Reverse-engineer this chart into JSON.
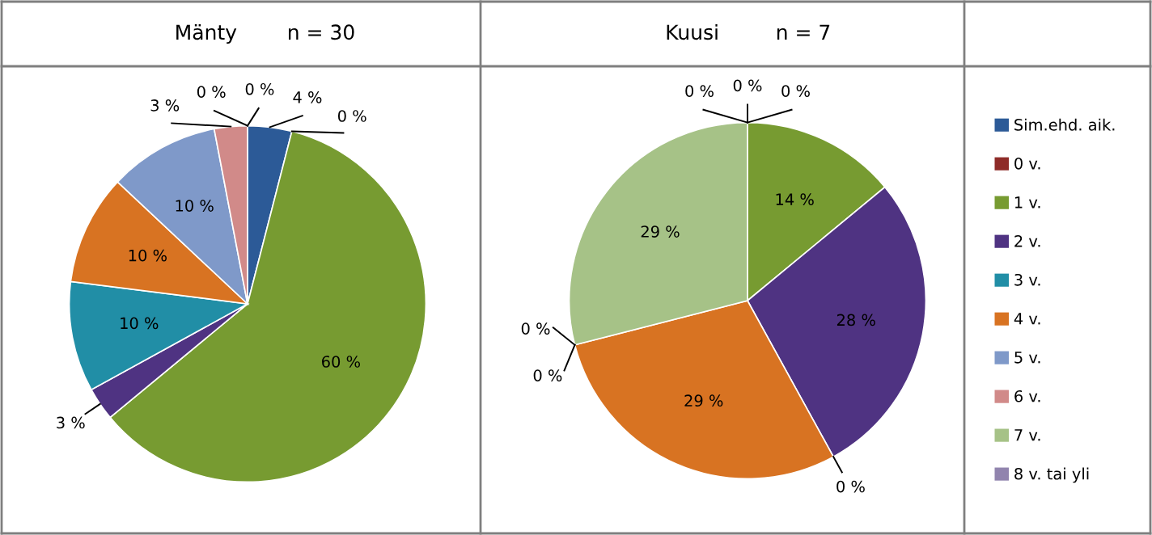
{
  "chart_data": [
    {
      "type": "pie",
      "title": "Mänty",
      "subtitle": "n = 30",
      "categories": [
        "Sim.ehd. aik.",
        "0 v.",
        "1 v.",
        "2 v.",
        "3 v.",
        "4 v.",
        "5 v.",
        "6 v.",
        "7 v.",
        "8 v. tai yli"
      ],
      "values": [
        4,
        0,
        60,
        3,
        10,
        10,
        10,
        3,
        0,
        0
      ],
      "value_labels": [
        "4 %",
        "0 %",
        "60 %",
        "3 %",
        "10 %",
        "10 %",
        "10 %",
        "3 %",
        "0 %",
        "0 %"
      ],
      "colors": [
        "#2c5a97",
        "#8e2b28",
        "#779b31",
        "#4f3382",
        "#218ea6",
        "#d87322",
        "#7f99c9",
        "#d18a89",
        "#a6c287",
        "#9184ae"
      ],
      "legend": "right"
    },
    {
      "type": "pie",
      "title": "Kuusi",
      "subtitle": "n = 7",
      "categories": [
        null,
        null,
        null,
        null,
        null,
        null,
        null,
        null,
        null,
        null
      ],
      "values": [
        0,
        0,
        14,
        28,
        0,
        29,
        0,
        0,
        29,
        0
      ],
      "value_labels": [
        "0 %",
        "0 %",
        "14 %",
        "28 %",
        "0 %",
        "29 %",
        "0 %",
        "0 %",
        "29 %",
        "0 %"
      ],
      "colors": [
        "#2c5a97",
        "#8e2b28",
        "#779b31",
        "#4f3382",
        "#218ea6",
        "#d87322",
        "#7f99c9",
        "#d18a89",
        "#a6c287",
        "#9184ae"
      ],
      "legend": false
    }
  ]
}
